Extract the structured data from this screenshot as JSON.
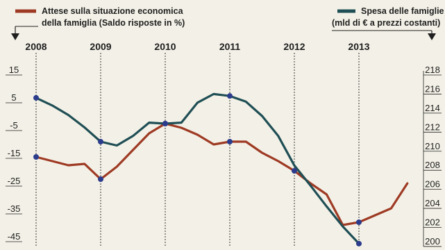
{
  "legend": {
    "left_line1": "Attese sulla situazione economica",
    "left_line2": "della famiglia (Saldo risposte in %)",
    "right_line1": "Spesa delle famiglie",
    "right_line2": "(mld di € a prezzi costanti)"
  },
  "colors": {
    "background": "#f3f1e7",
    "attese": "#9e3a24",
    "spesa": "#1f4e55",
    "marker": "#2c3c8c",
    "axis": "#1f1f1f"
  },
  "icons": {
    "left_axis_arrow": "arrow-down",
    "right_axis_arrow": "arrow-down"
  },
  "chart_data": {
    "type": "line",
    "title": "",
    "x_labels": [
      "2008",
      "2009",
      "2010",
      "2011",
      "2012",
      "2013"
    ],
    "x_range": [
      2008,
      2014
    ],
    "left_axis": {
      "label": "Attese sulla situazione economica della famiglia (Saldo risposte in %)",
      "ylim": [
        -45,
        15
      ],
      "ticks": [
        15,
        5,
        -5,
        -15,
        -25,
        -35,
        -45
      ]
    },
    "right_axis": {
      "label": "Spesa delle famiglie (mld di € a prezzi costanti)",
      "ylim": [
        200,
        218
      ],
      "ticks": [
        218,
        216,
        214,
        212,
        210,
        208,
        206,
        204,
        202,
        200
      ]
    },
    "series": [
      {
        "name": "Attese sulla situazione economica della famiglia (Saldo risposte in %)",
        "axis": "left",
        "color": "#9e3a24",
        "x": [
          2008.0,
          2008.25,
          2008.5,
          2008.75,
          2009.0,
          2009.25,
          2009.5,
          2009.75,
          2010.0,
          2010.25,
          2010.5,
          2010.75,
          2011.0,
          2011.25,
          2011.5,
          2011.75,
          2012.0,
          2012.25,
          2012.5,
          2012.75,
          2013.0,
          2013.25,
          2013.5,
          2013.75
        ],
        "y": [
          -14.5,
          -16,
          -17.5,
          -17,
          -22.5,
          -18,
          -12,
          -6,
          -2.5,
          -4,
          -6.5,
          -10,
          -9,
          -9,
          -13,
          -16,
          -19.5,
          -24,
          -28,
          -39,
          -38,
          -35.5,
          -33,
          -24
        ]
      },
      {
        "name": "Spesa delle famiglie (mld di € a prezzi costanti)",
        "axis": "right",
        "color": "#1f4e55",
        "x": [
          2008.0,
          2008.25,
          2008.5,
          2008.75,
          2009.0,
          2009.25,
          2009.5,
          2009.75,
          2010.0,
          2010.25,
          2010.5,
          2010.75,
          2011.0,
          2011.25,
          2011.5,
          2011.75,
          2012.0,
          2012.25,
          2012.5,
          2012.75,
          2013.0
        ],
        "y": [
          215.6,
          214.8,
          213.8,
          212.5,
          211.0,
          210.6,
          211.6,
          213.0,
          212.9,
          213.0,
          215.1,
          216.0,
          215.8,
          215.2,
          213.7,
          211.6,
          208.5,
          206.4,
          204.2,
          202.1,
          200.3
        ]
      }
    ],
    "markers": [
      {
        "series": "left",
        "x": 2008.0,
        "y": -14.5
      },
      {
        "series": "left",
        "x": 2009.0,
        "y": -22.5
      },
      {
        "series": "left",
        "x": 2010.0,
        "y": -2.5
      },
      {
        "series": "left",
        "x": 2011.0,
        "y": -9
      },
      {
        "series": "left",
        "x": 2012.0,
        "y": -19.5
      },
      {
        "series": "left",
        "x": 2013.0,
        "y": -38
      },
      {
        "series": "right",
        "x": 2008.0,
        "y": 215.6
      },
      {
        "series": "right",
        "x": 2009.0,
        "y": 211.0
      },
      {
        "series": "right",
        "x": 2010.0,
        "y": 212.9
      },
      {
        "series": "right",
        "x": 2011.0,
        "y": 215.8
      },
      {
        "series": "right",
        "x": 2013.0,
        "y": 200.3
      }
    ],
    "grid": false,
    "vertical_year_guides": true
  }
}
